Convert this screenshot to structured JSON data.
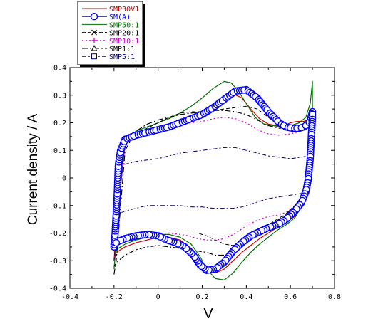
{
  "chart_data": {
    "type": "line",
    "xlabel": "V",
    "ylabel": "Current density / A",
    "xlim": [
      -0.4,
      0.8
    ],
    "ylim": [
      -0.4,
      0.4
    ],
    "x_ticks": [
      -0.4,
      -0.2,
      0,
      0.2,
      0.4,
      0.6,
      0.8
    ],
    "y_ticks": [
      -0.4,
      -0.3,
      -0.2,
      -0.1,
      0,
      0.1,
      0.2,
      0.3,
      0.4
    ],
    "x_tick_labels": [
      "-0.4",
      "-0.2",
      "0",
      "0.2",
      "0.4",
      "0.6",
      "0.8"
    ],
    "y_tick_labels": [
      "-0.4",
      "-0.3",
      "-0.2",
      "-0.1",
      "0",
      "0.1",
      "0.2",
      "0.3",
      "0.4"
    ],
    "legend_position": "top-left (outside plot)",
    "series": [
      {
        "name": "SMP30V1",
        "color": "#cc0000",
        "dash": "",
        "width": 1.2,
        "marker": "none",
        "x": [
          -0.2,
          -0.19,
          -0.18,
          -0.15,
          -0.1,
          -0.05,
          0,
          0.05,
          0.1,
          0.15,
          0.2,
          0.25,
          0.3,
          0.34,
          0.38,
          0.42,
          0.46,
          0.5,
          0.54,
          0.57,
          0.6,
          0.63,
          0.66,
          0.68,
          0.7,
          0.7,
          0.69,
          0.68,
          0.66,
          0.62,
          0.58,
          0.54,
          0.5,
          0.46,
          0.42,
          0.38,
          0.34,
          0.3,
          0.26,
          0.22,
          0.19,
          0.15,
          0.1,
          0.05,
          0,
          -0.05,
          -0.1,
          -0.15,
          -0.18,
          -0.2
        ],
        "y": [
          -0.3,
          -0.22,
          -0.1,
          0.12,
          0.155,
          0.17,
          0.18,
          0.195,
          0.21,
          0.225,
          0.24,
          0.265,
          0.29,
          0.305,
          0.29,
          0.25,
          0.215,
          0.195,
          0.19,
          0.19,
          0.2,
          0.205,
          0.205,
          0.21,
          0.22,
          0.2,
          0.05,
          -0.02,
          -0.08,
          -0.14,
          -0.16,
          -0.18,
          -0.2,
          -0.22,
          -0.245,
          -0.27,
          -0.3,
          -0.33,
          -0.345,
          -0.33,
          -0.295,
          -0.255,
          -0.225,
          -0.215,
          -0.215,
          -0.225,
          -0.235,
          -0.25,
          -0.265,
          -0.28
        ]
      },
      {
        "name": "SM(A)",
        "color": "#0000ff",
        "dash": "",
        "width": 1,
        "marker": "circle",
        "x": [
          -0.2,
          -0.195,
          -0.19,
          -0.185,
          -0.18,
          -0.17,
          -0.15,
          -0.1,
          -0.05,
          0,
          0.05,
          0.1,
          0.15,
          0.2,
          0.25,
          0.3,
          0.35,
          0.4,
          0.45,
          0.5,
          0.55,
          0.58,
          0.61,
          0.64,
          0.66,
          0.68,
          0.69,
          0.7,
          0.7,
          0.695,
          0.69,
          0.68,
          0.67,
          0.65,
          0.62,
          0.58,
          0.54,
          0.5,
          0.46,
          0.42,
          0.38,
          0.34,
          0.3,
          0.26,
          0.22,
          0.19,
          0.16,
          0.12,
          0.08,
          0.04,
          0,
          -0.05,
          -0.1,
          -0.15,
          -0.18,
          -0.2
        ],
        "y": [
          -0.25,
          -0.2,
          -0.13,
          -0.05,
          0.05,
          0.1,
          0.14,
          0.155,
          0.165,
          0.175,
          0.185,
          0.2,
          0.215,
          0.23,
          0.255,
          0.285,
          0.315,
          0.32,
          0.29,
          0.24,
          0.2,
          0.185,
          0.18,
          0.18,
          0.185,
          0.195,
          0.21,
          0.24,
          0.22,
          0.15,
          0.07,
          -0.01,
          -0.05,
          -0.09,
          -0.12,
          -0.15,
          -0.17,
          -0.18,
          -0.195,
          -0.21,
          -0.235,
          -0.265,
          -0.305,
          -0.33,
          -0.335,
          -0.315,
          -0.28,
          -0.25,
          -0.235,
          -0.225,
          -0.21,
          -0.205,
          -0.21,
          -0.22,
          -0.23,
          -0.24
        ]
      },
      {
        "name": "SMP50:1",
        "color": "#007000",
        "dash": "",
        "width": 1.2,
        "marker": "none",
        "x": [
          -0.2,
          -0.19,
          -0.18,
          -0.15,
          -0.1,
          -0.05,
          0,
          0.05,
          0.1,
          0.15,
          0.2,
          0.25,
          0.3,
          0.33,
          0.36,
          0.4,
          0.44,
          0.48,
          0.52,
          0.56,
          0.6,
          0.64,
          0.67,
          0.69,
          0.7,
          0.7,
          0.69,
          0.68,
          0.66,
          0.62,
          0.58,
          0.54,
          0.5,
          0.46,
          0.42,
          0.38,
          0.34,
          0.3,
          0.26,
          0.22,
          0.19,
          0.15,
          0.1,
          0.05,
          0,
          -0.05,
          -0.1,
          -0.15,
          -0.18,
          -0.2
        ],
        "y": [
          -0.33,
          -0.24,
          -0.11,
          0.14,
          0.17,
          0.185,
          0.2,
          0.215,
          0.235,
          0.26,
          0.29,
          0.325,
          0.35,
          0.345,
          0.32,
          0.27,
          0.22,
          0.195,
          0.19,
          0.185,
          0.19,
          0.2,
          0.22,
          0.27,
          0.35,
          0.22,
          0.07,
          -0.02,
          -0.09,
          -0.145,
          -0.17,
          -0.19,
          -0.215,
          -0.24,
          -0.27,
          -0.305,
          -0.345,
          -0.37,
          -0.365,
          -0.33,
          -0.285,
          -0.24,
          -0.215,
          -0.205,
          -0.205,
          -0.215,
          -0.225,
          -0.24,
          -0.255,
          -0.27
        ]
      },
      {
        "name": "SMP20:1",
        "color": "#000000",
        "dash": "5,3",
        "width": 1,
        "marker": "x",
        "x": [
          -0.2,
          -0.19,
          -0.18,
          -0.15,
          -0.1,
          -0.05,
          0,
          0.05,
          0.1,
          0.15,
          0.2,
          0.25,
          0.3,
          0.35,
          0.4,
          0.45,
          0.5,
          0.55,
          0.6,
          0.65,
          0.68,
          0.7,
          0.7,
          0.69,
          0.68,
          0.66,
          0.62,
          0.58,
          0.54,
          0.5,
          0.46,
          0.42,
          0.38,
          0.34,
          0.3,
          0.26,
          0.22,
          0.18,
          0.14,
          0.1,
          0.05,
          0,
          -0.05,
          -0.1,
          -0.15,
          -0.18,
          -0.2
        ],
        "y": [
          -0.3,
          -0.2,
          -0.08,
          0.13,
          0.16,
          0.18,
          0.2,
          0.22,
          0.235,
          0.24,
          0.24,
          0.245,
          0.25,
          0.255,
          0.26,
          0.25,
          0.22,
          0.19,
          0.18,
          0.19,
          0.2,
          0.21,
          0.19,
          0.08,
          0.0,
          -0.06,
          -0.1,
          -0.13,
          -0.15,
          -0.17,
          -0.2,
          -0.22,
          -0.235,
          -0.245,
          -0.24,
          -0.225,
          -0.21,
          -0.2,
          -0.2,
          -0.2,
          -0.2,
          -0.2,
          -0.2,
          -0.205,
          -0.215,
          -0.22,
          -0.23
        ]
      },
      {
        "name": "SMP10:1",
        "color": "#cc00cc",
        "dash": "2,3",
        "width": 1.2,
        "marker": "plus",
        "x": [
          -0.2,
          -0.19,
          -0.18,
          -0.15,
          -0.1,
          -0.05,
          0,
          0.05,
          0.1,
          0.15,
          0.2,
          0.25,
          0.3,
          0.35,
          0.4,
          0.45,
          0.5,
          0.55,
          0.6,
          0.65,
          0.68,
          0.7,
          0.7,
          0.69,
          0.68,
          0.66,
          0.62,
          0.58,
          0.54,
          0.5,
          0.46,
          0.42,
          0.38,
          0.34,
          0.3,
          0.26,
          0.22,
          0.18,
          0.14,
          0.1,
          0.05,
          0,
          -0.05,
          -0.1,
          -0.15,
          -0.18,
          -0.2
        ],
        "y": [
          -0.3,
          -0.2,
          -0.1,
          0.12,
          0.15,
          0.165,
          0.175,
          0.185,
          0.195,
          0.2,
          0.205,
          0.215,
          0.22,
          0.215,
          0.2,
          0.175,
          0.16,
          0.155,
          0.16,
          0.17,
          0.18,
          0.2,
          0.17,
          0.06,
          -0.02,
          -0.07,
          -0.105,
          -0.125,
          -0.135,
          -0.14,
          -0.15,
          -0.165,
          -0.185,
          -0.205,
          -0.22,
          -0.225,
          -0.225,
          -0.22,
          -0.21,
          -0.205,
          -0.2,
          -0.2,
          -0.2,
          -0.21,
          -0.22,
          -0.225,
          -0.23
        ]
      },
      {
        "name": "SMP1:1",
        "color": "#000000",
        "dash": "8,3,2,3",
        "width": 1.2,
        "marker": "triangle",
        "x": [
          -0.2,
          -0.19,
          -0.18,
          -0.15,
          -0.1,
          -0.05,
          0,
          0.05,
          0.1,
          0.15,
          0.2,
          0.25,
          0.3,
          0.35,
          0.4,
          0.45,
          0.5,
          0.55,
          0.6,
          0.65,
          0.68,
          0.7,
          0.7,
          0.69,
          0.68,
          0.66,
          0.62,
          0.58,
          0.54,
          0.5,
          0.46,
          0.42,
          0.38,
          0.34,
          0.3,
          0.26,
          0.22,
          0.18,
          0.14,
          0.1,
          0.05,
          0,
          -0.05,
          -0.1,
          -0.15,
          -0.18,
          -0.2
        ],
        "y": [
          -0.35,
          -0.3,
          -0.2,
          0.1,
          0.17,
          0.195,
          0.21,
          0.22,
          0.23,
          0.235,
          0.24,
          0.245,
          0.245,
          0.24,
          0.23,
          0.21,
          0.19,
          0.18,
          0.185,
          0.19,
          0.2,
          0.22,
          0.19,
          0.08,
          0.0,
          -0.06,
          -0.1,
          -0.13,
          -0.155,
          -0.18,
          -0.2,
          -0.225,
          -0.25,
          -0.27,
          -0.28,
          -0.28,
          -0.27,
          -0.265,
          -0.26,
          -0.255,
          -0.25,
          -0.245,
          -0.25,
          -0.26,
          -0.28,
          -0.3,
          -0.32
        ]
      },
      {
        "name": "SMP5:1",
        "color": "#000066",
        "dash": "6,3,2,3",
        "width": 1,
        "marker": "square",
        "x": [
          -0.2,
          -0.195,
          -0.19,
          -0.18,
          -0.15,
          -0.1,
          -0.05,
          0,
          0.05,
          0.1,
          0.15,
          0.2,
          0.25,
          0.3,
          0.35,
          0.4,
          0.45,
          0.5,
          0.55,
          0.6,
          0.65,
          0.68,
          0.7,
          0.7,
          0.69,
          0.68,
          0.66,
          0.62,
          0.58,
          0.54,
          0.5,
          0.46,
          0.42,
          0.38,
          0.34,
          0.3,
          0.25,
          0.2,
          0.15,
          0.1,
          0.05,
          0,
          -0.05,
          -0.1,
          -0.15,
          -0.18,
          -0.2
        ],
        "y": [
          -0.2,
          -0.15,
          -0.1,
          -0.02,
          0.05,
          0.06,
          0.065,
          0.07,
          0.08,
          0.09,
          0.095,
          0.1,
          0.105,
          0.11,
          0.11,
          0.1,
          0.09,
          0.08,
          0.075,
          0.07,
          0.075,
          0.08,
          0.1,
          0.08,
          0.0,
          -0.04,
          -0.055,
          -0.06,
          -0.065,
          -0.07,
          -0.075,
          -0.085,
          -0.095,
          -0.105,
          -0.11,
          -0.11,
          -0.11,
          -0.105,
          -0.105,
          -0.1,
          -0.1,
          -0.1,
          -0.1,
          -0.11,
          -0.12,
          -0.13,
          -0.14
        ]
      }
    ]
  }
}
